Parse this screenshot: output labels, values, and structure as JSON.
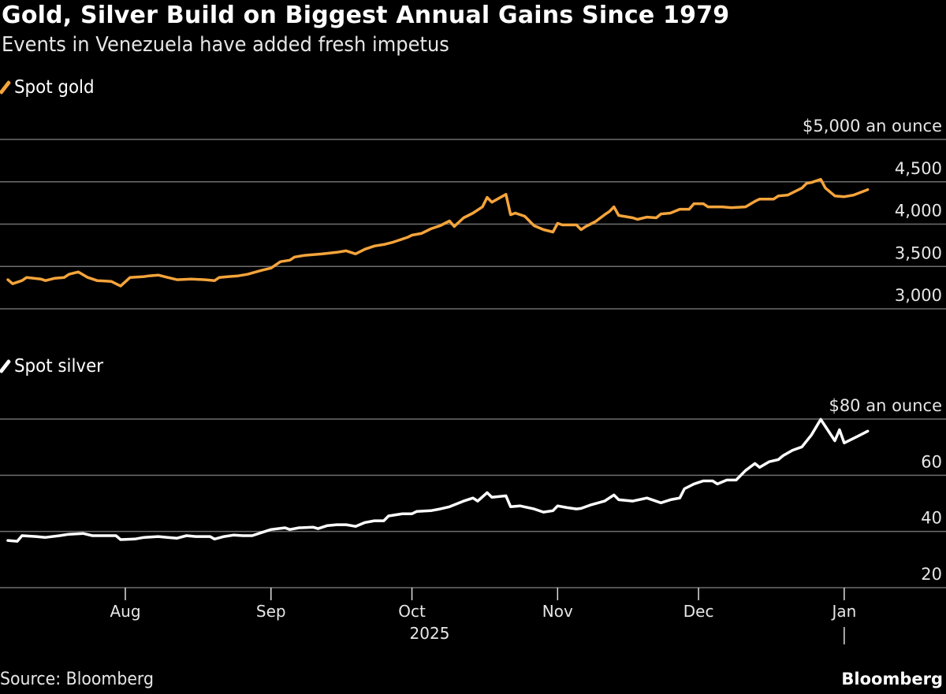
{
  "header": {
    "title": "Gold, Silver Build on Biggest Annual Gains Since 1979",
    "subtitle": "Events in Venezuela have added fresh impetus"
  },
  "footer": {
    "source": "Source: Bloomberg",
    "logo": "Bloomberg"
  },
  "colors": {
    "gold": "#f5a43b",
    "silver": "#ffffff",
    "grid": "#6e6e6e",
    "background": "#000000"
  },
  "chart_data": [
    {
      "type": "line",
      "legend": "Spot gold",
      "legend_placement": "top-left",
      "grid": true,
      "ylim": [
        3000,
        5000
      ],
      "yticks": [
        {
          "value": 5000,
          "label": "$5,000 an ounce"
        },
        {
          "value": 4500,
          "label": "4,500"
        },
        {
          "value": 4000,
          "label": "4,000"
        },
        {
          "value": 3500,
          "label": "3,500"
        },
        {
          "value": 3000,
          "label": "3,000"
        }
      ],
      "series": [
        {
          "name": "Spot gold",
          "color": "#f5a43b",
          "points": [
            [
              "2025-07-07",
              3343
            ],
            [
              "2025-07-08",
              3296
            ],
            [
              "2025-07-10",
              3333
            ],
            [
              "2025-07-11",
              3370
            ],
            [
              "2025-07-14",
              3352
            ],
            [
              "2025-07-15",
              3333
            ],
            [
              "2025-07-17",
              3361
            ],
            [
              "2025-07-19",
              3370
            ],
            [
              "2025-07-20",
              3407
            ],
            [
              "2025-07-22",
              3435
            ],
            [
              "2025-07-24",
              3370
            ],
            [
              "2025-07-26",
              3333
            ],
            [
              "2025-07-29",
              3324
            ],
            [
              "2025-07-30",
              3296
            ],
            [
              "2025-07-31",
              3269
            ],
            [
              "2025-08-02",
              3370
            ],
            [
              "2025-08-05",
              3380
            ],
            [
              "2025-08-06",
              3389
            ],
            [
              "2025-08-08",
              3398
            ],
            [
              "2025-08-10",
              3370
            ],
            [
              "2025-08-12",
              3343
            ],
            [
              "2025-08-15",
              3352
            ],
            [
              "2025-08-18",
              3343
            ],
            [
              "2025-08-20",
              3333
            ],
            [
              "2025-08-21",
              3370
            ],
            [
              "2025-08-23",
              3380
            ],
            [
              "2025-08-25",
              3389
            ],
            [
              "2025-08-27",
              3407
            ],
            [
              "2025-08-30",
              3454
            ],
            [
              "2025-09-01",
              3481
            ],
            [
              "2025-09-03",
              3556
            ],
            [
              "2025-09-05",
              3574
            ],
            [
              "2025-09-06",
              3611
            ],
            [
              "2025-09-08",
              3630
            ],
            [
              "2025-09-10",
              3639
            ],
            [
              "2025-09-12",
              3648
            ],
            [
              "2025-09-15",
              3667
            ],
            [
              "2025-09-17",
              3685
            ],
            [
              "2025-09-19",
              3648
            ],
            [
              "2025-09-21",
              3704
            ],
            [
              "2025-09-23",
              3741
            ],
            [
              "2025-09-25",
              3759
            ],
            [
              "2025-09-27",
              3787
            ],
            [
              "2025-09-30",
              3843
            ],
            [
              "2025-10-01",
              3870
            ],
            [
              "2025-10-03",
              3889
            ],
            [
              "2025-10-05",
              3944
            ],
            [
              "2025-10-07",
              3981
            ],
            [
              "2025-10-09",
              4037
            ],
            [
              "2025-10-10",
              3972
            ],
            [
              "2025-10-12",
              4074
            ],
            [
              "2025-10-14",
              4130
            ],
            [
              "2025-10-16",
              4204
            ],
            [
              "2025-10-17",
              4315
            ],
            [
              "2025-10-18",
              4259
            ],
            [
              "2025-10-21",
              4352
            ],
            [
              "2025-10-22",
              4111
            ],
            [
              "2025-10-23",
              4130
            ],
            [
              "2025-10-25",
              4093
            ],
            [
              "2025-10-27",
              3981
            ],
            [
              "2025-10-29",
              3935
            ],
            [
              "2025-10-31",
              3907
            ],
            [
              "2025-11-01",
              4009
            ],
            [
              "2025-11-02",
              3991
            ],
            [
              "2025-11-05",
              3991
            ],
            [
              "2025-11-06",
              3935
            ],
            [
              "2025-11-07",
              3972
            ],
            [
              "2025-11-09",
              4028
            ],
            [
              "2025-11-11",
              4111
            ],
            [
              "2025-11-12",
              4148
            ],
            [
              "2025-11-13",
              4204
            ],
            [
              "2025-11-14",
              4102
            ],
            [
              "2025-11-17",
              4074
            ],
            [
              "2025-11-18",
              4056
            ],
            [
              "2025-11-20",
              4083
            ],
            [
              "2025-11-22",
              4074
            ],
            [
              "2025-11-23",
              4120
            ],
            [
              "2025-11-25",
              4130
            ],
            [
              "2025-11-27",
              4176
            ],
            [
              "2025-11-29",
              4176
            ],
            [
              "2025-11-30",
              4241
            ],
            [
              "2025-12-02",
              4241
            ],
            [
              "2025-12-03",
              4204
            ],
            [
              "2025-12-06",
              4204
            ],
            [
              "2025-12-08",
              4194
            ],
            [
              "2025-12-11",
              4204
            ],
            [
              "2025-12-13",
              4269
            ],
            [
              "2025-12-14",
              4296
            ],
            [
              "2025-12-17",
              4296
            ],
            [
              "2025-12-18",
              4333
            ],
            [
              "2025-12-20",
              4343
            ],
            [
              "2025-12-23",
              4426
            ],
            [
              "2025-12-24",
              4481
            ],
            [
              "2025-12-25",
              4491
            ],
            [
              "2025-12-27",
              4528
            ],
            [
              "2025-12-28",
              4426
            ],
            [
              "2025-12-30",
              4333
            ],
            [
              "2026-01-01",
              4324
            ],
            [
              "2026-01-03",
              4343
            ],
            [
              "2026-01-06",
              4407
            ]
          ]
        }
      ]
    },
    {
      "type": "line",
      "legend": "Spot silver",
      "legend_placement": "top-left",
      "grid": true,
      "ylim": [
        20,
        80
      ],
      "yticks": [
        {
          "value": 80,
          "label": "$80 an ounce"
        },
        {
          "value": 60,
          "label": "60"
        },
        {
          "value": 40,
          "label": "40"
        },
        {
          "value": 20,
          "label": "20"
        }
      ],
      "xticks": [
        "Aug",
        "Sep",
        "Oct",
        "Nov",
        "Dec",
        "Jan"
      ],
      "xtick_dates": [
        "2025-08-01",
        "2025-09-01",
        "2025-10-01",
        "2025-11-01",
        "2025-12-01",
        "2026-01-01"
      ],
      "year_label": "2025",
      "series": [
        {
          "name": "Spot silver",
          "color": "#ffffff",
          "points": [
            [
              "2025-07-07",
              36.8
            ],
            [
              "2025-07-09",
              36.5
            ],
            [
              "2025-07-10",
              38.5
            ],
            [
              "2025-07-13",
              38.2
            ],
            [
              "2025-07-15",
              37.9
            ],
            [
              "2025-07-18",
              38.5
            ],
            [
              "2025-07-20",
              39.0
            ],
            [
              "2025-07-23",
              39.3
            ],
            [
              "2025-07-25",
              38.5
            ],
            [
              "2025-07-27",
              38.5
            ],
            [
              "2025-07-30",
              38.5
            ],
            [
              "2025-07-31",
              37.1
            ],
            [
              "2025-08-03",
              37.3
            ],
            [
              "2025-08-05",
              37.9
            ],
            [
              "2025-08-08",
              38.2
            ],
            [
              "2025-08-10",
              37.9
            ],
            [
              "2025-08-12",
              37.6
            ],
            [
              "2025-08-14",
              38.5
            ],
            [
              "2025-08-16",
              38.2
            ],
            [
              "2025-08-19",
              38.2
            ],
            [
              "2025-08-20",
              37.3
            ],
            [
              "2025-08-22",
              38.2
            ],
            [
              "2025-08-24",
              38.7
            ],
            [
              "2025-08-26",
              38.5
            ],
            [
              "2025-08-28",
              38.5
            ],
            [
              "2025-08-30",
              39.6
            ],
            [
              "2025-09-01",
              40.7
            ],
            [
              "2025-09-04",
              41.3
            ],
            [
              "2025-09-05",
              40.7
            ],
            [
              "2025-09-07",
              41.3
            ],
            [
              "2025-09-10",
              41.5
            ],
            [
              "2025-09-11",
              41.0
            ],
            [
              "2025-09-13",
              42.1
            ],
            [
              "2025-09-15",
              42.4
            ],
            [
              "2025-09-17",
              42.4
            ],
            [
              "2025-09-19",
              41.8
            ],
            [
              "2025-09-21",
              43.2
            ],
            [
              "2025-09-23",
              43.8
            ],
            [
              "2025-09-25",
              43.8
            ],
            [
              "2025-09-26",
              45.5
            ],
            [
              "2025-09-29",
              46.3
            ],
            [
              "2025-10-01",
              46.3
            ],
            [
              "2025-10-02",
              47.1
            ],
            [
              "2025-10-05",
              47.4
            ],
            [
              "2025-10-07",
              48.0
            ],
            [
              "2025-10-09",
              48.8
            ],
            [
              "2025-10-12",
              50.8
            ],
            [
              "2025-10-14",
              51.9
            ],
            [
              "2025-10-15",
              50.8
            ],
            [
              "2025-10-17",
              53.8
            ],
            [
              "2025-10-18",
              52.2
            ],
            [
              "2025-10-21",
              52.7
            ],
            [
              "2025-10-22",
              48.8
            ],
            [
              "2025-10-24",
              49.1
            ],
            [
              "2025-10-27",
              48.0
            ],
            [
              "2025-10-29",
              46.9
            ],
            [
              "2025-10-31",
              47.4
            ],
            [
              "2025-11-01",
              49.1
            ],
            [
              "2025-11-03",
              48.5
            ],
            [
              "2025-11-05",
              48.0
            ],
            [
              "2025-11-06",
              48.2
            ],
            [
              "2025-11-08",
              49.4
            ],
            [
              "2025-11-11",
              50.8
            ],
            [
              "2025-11-13",
              53.0
            ],
            [
              "2025-11-14",
              51.3
            ],
            [
              "2025-11-17",
              50.8
            ],
            [
              "2025-11-20",
              51.9
            ],
            [
              "2025-11-23",
              50.2
            ],
            [
              "2025-11-25",
              51.3
            ],
            [
              "2025-11-27",
              51.9
            ],
            [
              "2025-11-28",
              55.2
            ],
            [
              "2025-11-30",
              56.9
            ],
            [
              "2025-12-02",
              58.0
            ],
            [
              "2025-12-04",
              58.0
            ],
            [
              "2025-12-05",
              56.9
            ],
            [
              "2025-12-07",
              58.3
            ],
            [
              "2025-12-09",
              58.3
            ],
            [
              "2025-12-11",
              61.7
            ],
            [
              "2025-12-13",
              64.2
            ],
            [
              "2025-12-14",
              62.8
            ],
            [
              "2025-12-16",
              64.8
            ],
            [
              "2025-12-18",
              65.6
            ],
            [
              "2025-12-19",
              67.0
            ],
            [
              "2025-12-21",
              68.9
            ],
            [
              "2025-12-23",
              70.1
            ],
            [
              "2025-12-25",
              74.3
            ],
            [
              "2025-12-27",
              79.9
            ],
            [
              "2025-12-30",
              72.3
            ],
            [
              "2025-12-31",
              76.2
            ],
            [
              "2026-01-01",
              71.5
            ],
            [
              "2026-01-04",
              74.0
            ],
            [
              "2026-01-06",
              75.7
            ]
          ]
        }
      ]
    }
  ]
}
